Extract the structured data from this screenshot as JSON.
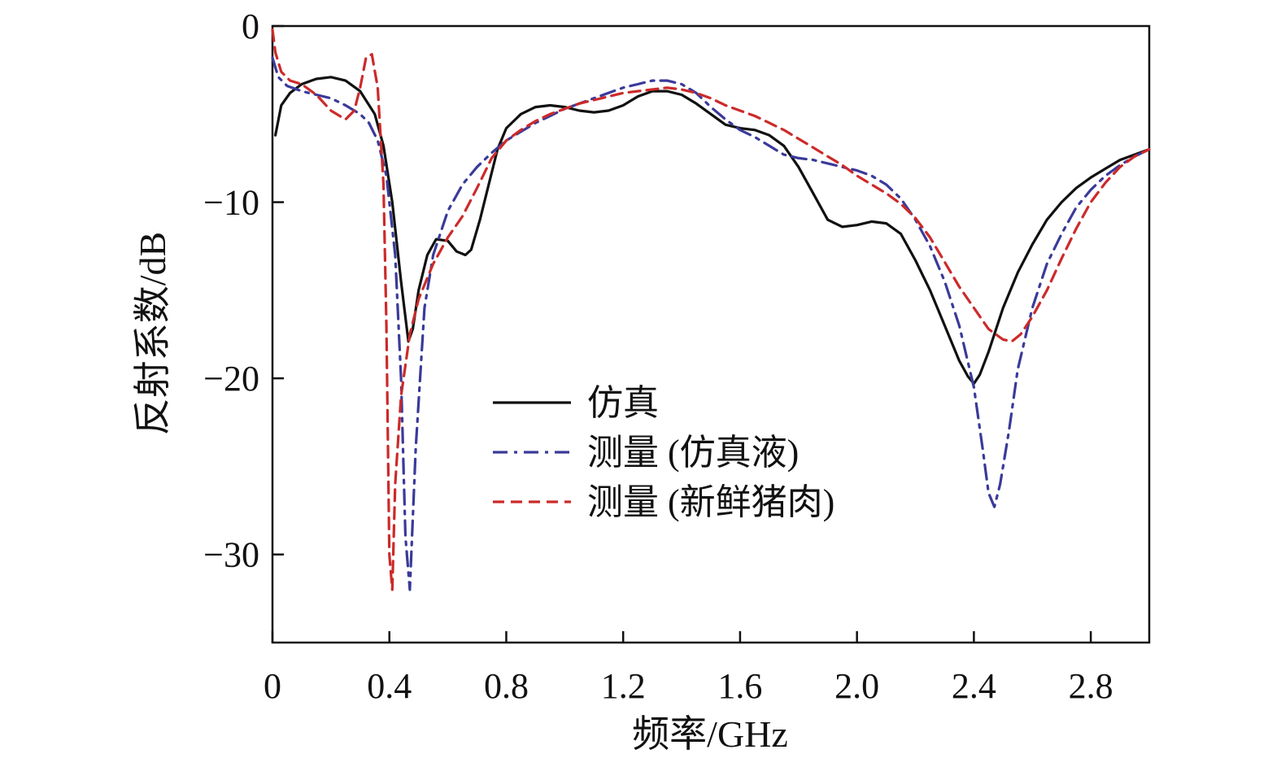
{
  "chart_data": {
    "type": "line",
    "xlabel": "频率/GHz",
    "ylabel": "反射系数/dB",
    "xlim": [
      0,
      3.0
    ],
    "ylim": [
      -35,
      0
    ],
    "xticks": [
      0,
      0.4,
      0.8,
      1.2,
      1.6,
      2.0,
      2.4,
      2.8
    ],
    "xtick_labels": [
      "0",
      "0.4",
      "0.8",
      "1.2",
      "1.6",
      "2.0",
      "2.4",
      "2.8"
    ],
    "yticks": [
      0,
      -10,
      -20,
      -30
    ],
    "ytick_labels": [
      "0",
      "−10",
      "−20",
      "−30"
    ],
    "grid": false,
    "legend_position": "center",
    "series": [
      {
        "name": "仿真",
        "color": "#111111",
        "style": "solid",
        "x": [
          0.01,
          0.03,
          0.06,
          0.1,
          0.15,
          0.2,
          0.25,
          0.3,
          0.35,
          0.38,
          0.41,
          0.44,
          0.465,
          0.48,
          0.5,
          0.53,
          0.56,
          0.6,
          0.63,
          0.66,
          0.68,
          0.71,
          0.74,
          0.77,
          0.8,
          0.85,
          0.9,
          0.95,
          1.0,
          1.05,
          1.1,
          1.15,
          1.2,
          1.25,
          1.3,
          1.35,
          1.4,
          1.45,
          1.5,
          1.55,
          1.6,
          1.65,
          1.7,
          1.75,
          1.8,
          1.85,
          1.9,
          1.95,
          2.0,
          2.05,
          2.1,
          2.15,
          2.2,
          2.25,
          2.3,
          2.35,
          2.38,
          2.4,
          2.42,
          2.45,
          2.5,
          2.55,
          2.6,
          2.65,
          2.7,
          2.75,
          2.8,
          2.85,
          2.9,
          2.95,
          3.0
        ],
        "y": [
          -6.2,
          -4.5,
          -3.8,
          -3.3,
          -3.0,
          -2.9,
          -3.1,
          -3.7,
          -5.0,
          -6.8,
          -10.0,
          -14.5,
          -17.9,
          -17.2,
          -15.0,
          -13.0,
          -12.1,
          -12.2,
          -12.8,
          -13.0,
          -12.7,
          -11.0,
          -9.0,
          -7.0,
          -5.8,
          -5.0,
          -4.6,
          -4.5,
          -4.6,
          -4.8,
          -4.9,
          -4.8,
          -4.5,
          -4.0,
          -3.7,
          -3.7,
          -3.9,
          -4.4,
          -5.0,
          -5.6,
          -5.8,
          -5.9,
          -6.2,
          -6.8,
          -8.0,
          -9.5,
          -11.0,
          -11.4,
          -11.3,
          -11.1,
          -11.2,
          -11.8,
          -13.3,
          -15.0,
          -17.0,
          -19.0,
          -19.9,
          -20.3,
          -19.8,
          -18.5,
          -16.0,
          -14.0,
          -12.4,
          -11.0,
          -10.0,
          -9.2,
          -8.6,
          -8.1,
          -7.6,
          -7.3,
          -7.0
        ]
      },
      {
        "name": "测量 (仿真液)",
        "color": "#3a3a9a",
        "style": "dashdot",
        "x": [
          0.0,
          0.02,
          0.05,
          0.1,
          0.15,
          0.2,
          0.25,
          0.3,
          0.33,
          0.36,
          0.39,
          0.42,
          0.44,
          0.455,
          0.47,
          0.49,
          0.52,
          0.55,
          0.6,
          0.65,
          0.7,
          0.75,
          0.8,
          0.85,
          0.9,
          0.95,
          1.0,
          1.05,
          1.1,
          1.15,
          1.2,
          1.25,
          1.3,
          1.35,
          1.4,
          1.45,
          1.5,
          1.55,
          1.6,
          1.65,
          1.7,
          1.75,
          1.8,
          1.85,
          1.9,
          1.95,
          2.0,
          2.05,
          2.1,
          2.15,
          2.2,
          2.25,
          2.3,
          2.35,
          2.4,
          2.43,
          2.45,
          2.47,
          2.49,
          2.52,
          2.55,
          2.6,
          2.65,
          2.7,
          2.75,
          2.8,
          2.85,
          2.9,
          2.95,
          3.0
        ],
        "y": [
          -1.8,
          -2.9,
          -3.4,
          -3.7,
          -3.9,
          -4.1,
          -4.5,
          -5.0,
          -5.5,
          -6.5,
          -8.5,
          -13.0,
          -20.0,
          -29.0,
          -32.0,
          -24.0,
          -16.0,
          -13.0,
          -10.5,
          -9.0,
          -8.0,
          -7.2,
          -6.5,
          -6.0,
          -5.5,
          -5.1,
          -4.7,
          -4.4,
          -4.1,
          -3.8,
          -3.5,
          -3.3,
          -3.1,
          -3.1,
          -3.3,
          -3.8,
          -4.6,
          -5.3,
          -5.9,
          -6.3,
          -6.8,
          -7.3,
          -7.5,
          -7.6,
          -7.8,
          -8.0,
          -8.2,
          -8.5,
          -9.0,
          -9.8,
          -11.0,
          -12.5,
          -14.5,
          -17.0,
          -20.5,
          -24.0,
          -26.5,
          -27.3,
          -26.0,
          -23.0,
          -19.5,
          -16.0,
          -13.5,
          -11.8,
          -10.3,
          -9.3,
          -8.5,
          -7.9,
          -7.4,
          -7.0
        ]
      },
      {
        "name": "测量 (新鲜猪肉)",
        "color": "#cc2a2a",
        "style": "dashed",
        "x": [
          0.0,
          0.01,
          0.03,
          0.06,
          0.1,
          0.15,
          0.2,
          0.25,
          0.28,
          0.3,
          0.32,
          0.34,
          0.36,
          0.38,
          0.39,
          0.4,
          0.41,
          0.42,
          0.44,
          0.47,
          0.5,
          0.55,
          0.6,
          0.65,
          0.7,
          0.75,
          0.8,
          0.85,
          0.9,
          0.95,
          1.0,
          1.05,
          1.1,
          1.15,
          1.2,
          1.25,
          1.3,
          1.35,
          1.4,
          1.45,
          1.5,
          1.55,
          1.6,
          1.65,
          1.7,
          1.75,
          1.8,
          1.85,
          1.9,
          1.95,
          2.0,
          2.05,
          2.1,
          2.15,
          2.2,
          2.25,
          2.3,
          2.35,
          2.4,
          2.45,
          2.5,
          2.53,
          2.56,
          2.6,
          2.65,
          2.7,
          2.75,
          2.8,
          2.85,
          2.9,
          2.95,
          3.0
        ],
        "y": [
          -0.2,
          -1.5,
          -2.6,
          -3.1,
          -3.3,
          -3.9,
          -4.8,
          -5.3,
          -4.8,
          -3.5,
          -1.8,
          -1.6,
          -3.5,
          -9.0,
          -17.0,
          -30.0,
          -32.0,
          -26.0,
          -21.0,
          -17.5,
          -15.5,
          -13.5,
          -12.0,
          -10.8,
          -9.2,
          -7.5,
          -6.5,
          -5.9,
          -5.4,
          -5.0,
          -4.7,
          -4.4,
          -4.2,
          -4.0,
          -3.8,
          -3.7,
          -3.6,
          -3.5,
          -3.6,
          -3.8,
          -4.1,
          -4.5,
          -4.8,
          -5.1,
          -5.5,
          -5.9,
          -6.4,
          -6.9,
          -7.4,
          -7.9,
          -8.5,
          -9.0,
          -9.5,
          -10.1,
          -10.9,
          -12.0,
          -13.4,
          -14.8,
          -16.0,
          -17.2,
          -17.8,
          -17.9,
          -17.5,
          -16.5,
          -15.0,
          -13.2,
          -11.5,
          -10.0,
          -8.9,
          -8.0,
          -7.4,
          -7.0
        ]
      }
    ]
  }
}
